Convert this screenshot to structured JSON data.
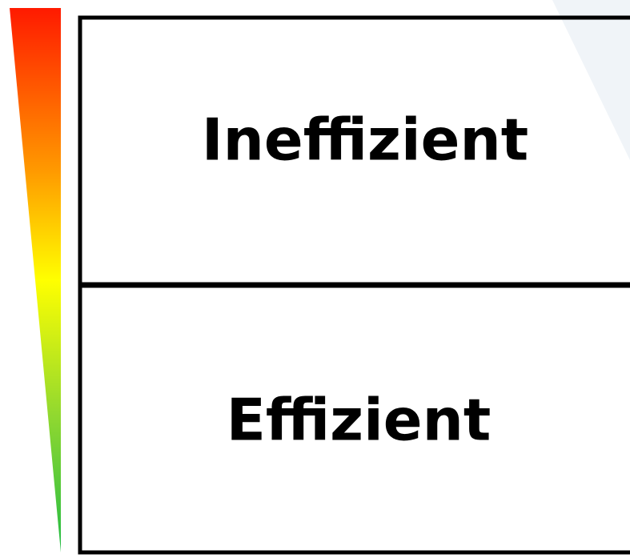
{
  "boxes": [
    {
      "label": "Ineffizient"
    },
    {
      "label": "Effizient"
    }
  ]
}
